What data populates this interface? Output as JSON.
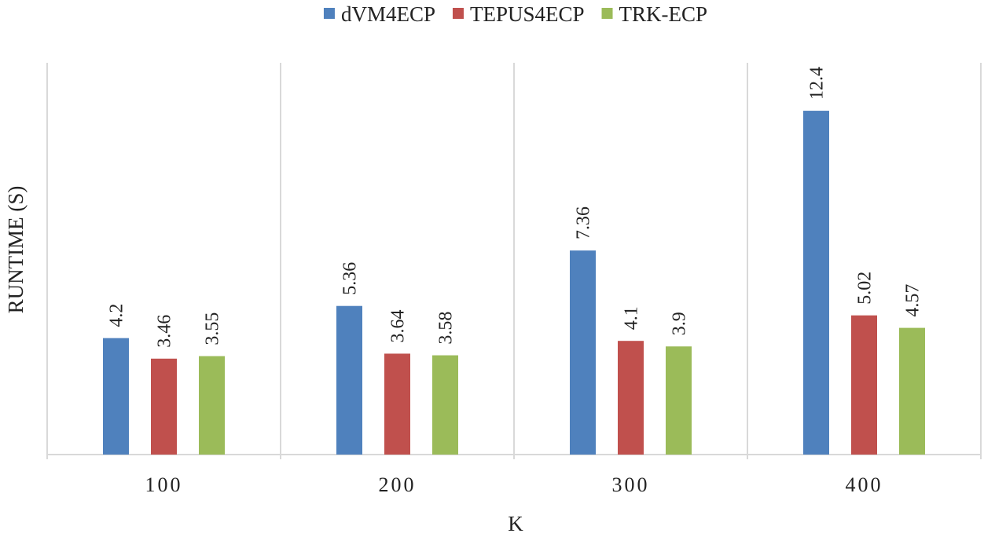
{
  "chart_data": {
    "type": "bar",
    "title": "",
    "xlabel": "K",
    "ylabel": "RUNTIME (S)",
    "categories": [
      "100",
      "200",
      "300",
      "400"
    ],
    "series": [
      {
        "name": "dVM4ECP",
        "color": "#4f81bd",
        "values": [
          4.2,
          5.36,
          7.36,
          12.4
        ]
      },
      {
        "name": "TEPUS4ECP",
        "color": "#c0504d",
        "values": [
          3.46,
          3.64,
          4.1,
          5.02
        ]
      },
      {
        "name": "TRK-ECP",
        "color": "#9bbb59",
        "values": [
          3.55,
          3.58,
          3.9,
          4.57
        ]
      }
    ],
    "ylim": [
      0,
      14.95
    ],
    "grid": false,
    "category_separators": true,
    "legend": "top-center",
    "data_labels": true
  }
}
